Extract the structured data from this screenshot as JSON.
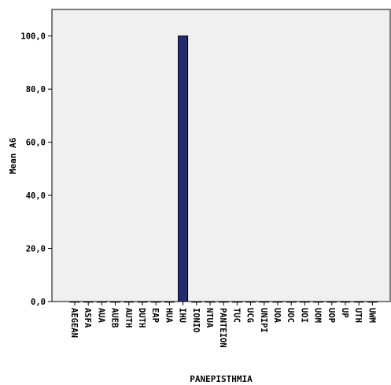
{
  "chart_data": {
    "type": "bar",
    "xlabel": "PANEPISTHMIA",
    "ylabel": "Mean A6",
    "ylim": [
      0,
      110
    ],
    "yticks": [
      0,
      20,
      40,
      60,
      80,
      100
    ],
    "ytick_labels": [
      "0,0",
      "20,0",
      "40,0",
      "60,0",
      "80,0",
      "100,0"
    ],
    "grid": false,
    "categories": [
      "AEGEAN",
      "ASFA",
      "AUA",
      "AUEB",
      "AUTH",
      "DUTH",
      "EAP",
      "HUA",
      "IHU",
      "IONIO",
      "NTUA",
      "PANTEION",
      "TUC",
      "UCG",
      "UNIPI",
      "UOA",
      "UOC",
      "UOI",
      "UOM",
      "UOP",
      "UP",
      "UTH",
      "UWM"
    ],
    "values": [
      0,
      0,
      0,
      0,
      0,
      0,
      0,
      0,
      100,
      0,
      0,
      0,
      0,
      0,
      0,
      0,
      0,
      0,
      0,
      0,
      0,
      0,
      0
    ],
    "colors": {
      "bar": "#232c70",
      "plot_bg": "#f0f0f0",
      "axis": "#000000"
    }
  }
}
